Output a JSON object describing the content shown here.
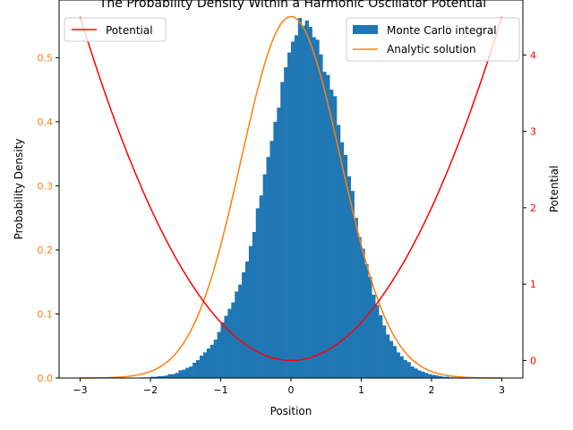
{
  "chart_data": {
    "type": "bar",
    "title": "The Probability Density Within a Harmonic Oscillator Potential",
    "xlabel": "Position",
    "ylabel_left": "Probability Density",
    "ylabel_right": "Potential",
    "xlim": [
      -3.3,
      3.3
    ],
    "ylim_left": [
      0.0,
      0.59
    ],
    "ylim_right": [
      -0.23,
      4.72
    ],
    "x_ticks": [
      "-3",
      "-2",
      "-1",
      "0",
      "1",
      "2",
      "3"
    ],
    "y_ticks_left": [
      "0.0",
      "0.1",
      "0.2",
      "0.3",
      "0.4",
      "0.5"
    ],
    "y_ticks_right": [
      "0",
      "1",
      "2",
      "3",
      "4"
    ],
    "legend_left": {
      "placement": "top-left",
      "entries": [
        "Potential"
      ]
    },
    "legend_right": {
      "placement": "top-right",
      "entries": [
        "Monte Carlo integral",
        "Analytic solution"
      ]
    },
    "colors": {
      "histogram": "#1f77b4",
      "analytic": "#ff7f0e",
      "potential": "#ff0000",
      "left_ticks": "#ff7f0e",
      "right_ticks": "#ff0000"
    },
    "histogram": {
      "name": "Monte Carlo integral",
      "bin_width": 0.05,
      "bin_start": -3.0,
      "values": [
        0,
        0,
        0,
        0,
        0,
        0,
        0,
        0,
        0,
        0,
        0,
        0,
        0,
        0,
        0,
        0,
        0,
        0.001,
        0.001,
        0.001,
        0.002,
        0.002,
        0.003,
        0.003,
        0.004,
        0.006,
        0.006,
        0.008,
        0.012,
        0.013,
        0.016,
        0.018,
        0.024,
        0.028,
        0.035,
        0.04,
        0.046,
        0.052,
        0.06,
        0.072,
        0.087,
        0.097,
        0.108,
        0.118,
        0.135,
        0.146,
        0.165,
        0.182,
        0.206,
        0.228,
        0.265,
        0.285,
        0.318,
        0.345,
        0.37,
        0.4,
        0.422,
        0.462,
        0.485,
        0.508,
        0.525,
        0.535,
        0.562,
        0.55,
        0.558,
        0.548,
        0.532,
        0.528,
        0.505,
        0.478,
        0.473,
        0.45,
        0.44,
        0.395,
        0.368,
        0.348,
        0.315,
        0.292,
        0.25,
        0.22,
        0.202,
        0.178,
        0.158,
        0.13,
        0.114,
        0.098,
        0.082,
        0.068,
        0.058,
        0.05,
        0.04,
        0.034,
        0.028,
        0.025,
        0.018,
        0.015,
        0.012,
        0.01,
        0.008,
        0.006,
        0.005,
        0.004,
        0.003,
        0.002,
        0.002,
        0.001,
        0.001,
        0,
        0,
        0,
        0,
        0,
        0,
        0,
        0,
        0,
        0,
        0,
        0,
        0
      ]
    },
    "analytic": {
      "name": "Analytic solution",
      "function": "exp(-x^2)/sqrt(pi)",
      "x_range": [
        -3,
        3
      ]
    },
    "potential": {
      "name": "Potential",
      "function": "x^2/2",
      "x_range": [
        -3,
        3
      ]
    }
  }
}
